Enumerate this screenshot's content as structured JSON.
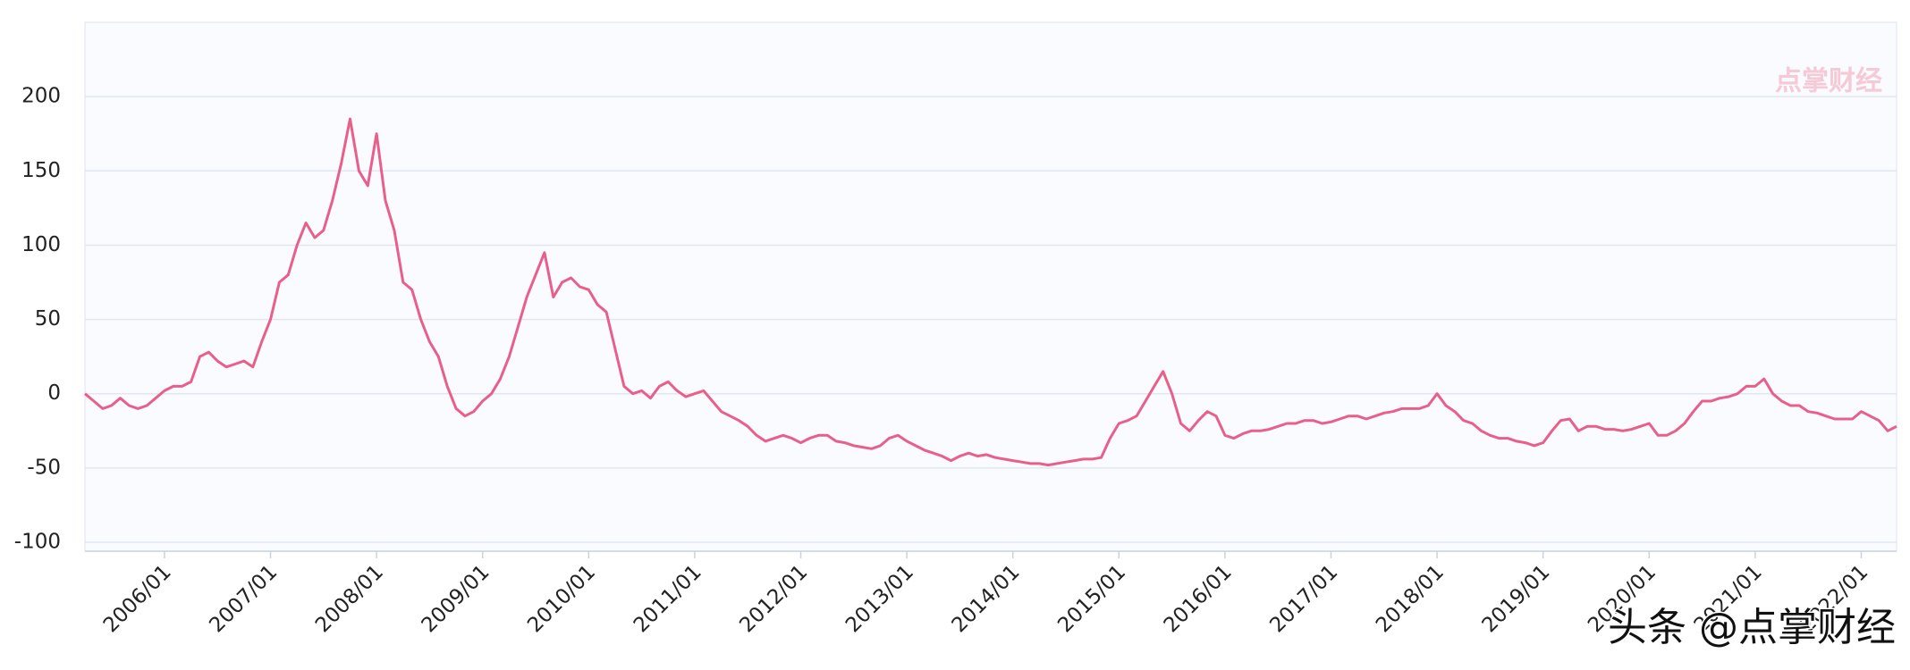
{
  "chart_data": {
    "type": "line",
    "x": [
      "2005/04",
      "2005/05",
      "2005/06",
      "2005/07",
      "2005/08",
      "2005/09",
      "2005/10",
      "2005/11",
      "2005/12",
      "2006/01",
      "2006/02",
      "2006/03",
      "2006/04",
      "2006/05",
      "2006/06",
      "2006/07",
      "2006/08",
      "2006/09",
      "2006/10",
      "2006/11",
      "2006/12",
      "2007/01",
      "2007/02",
      "2007/03",
      "2007/04",
      "2007/05",
      "2007/06",
      "2007/07",
      "2007/08",
      "2007/09",
      "2007/10",
      "2007/11",
      "2007/12",
      "2008/01",
      "2008/02",
      "2008/03",
      "2008/04",
      "2008/05",
      "2008/06",
      "2008/07",
      "2008/08",
      "2008/09",
      "2008/10",
      "2008/11",
      "2008/12",
      "2009/01",
      "2009/02",
      "2009/03",
      "2009/04",
      "2009/05",
      "2009/06",
      "2009/07",
      "2009/08",
      "2009/09",
      "2009/10",
      "2009/11",
      "2009/12",
      "2010/01",
      "2010/02",
      "2010/03",
      "2010/04",
      "2010/05",
      "2010/06",
      "2010/07",
      "2010/08",
      "2010/09",
      "2010/10",
      "2010/11",
      "2010/12",
      "2011/01",
      "2011/02",
      "2011/03",
      "2011/04",
      "2011/05",
      "2011/06",
      "2011/07",
      "2011/08",
      "2011/09",
      "2011/10",
      "2011/11",
      "2011/12",
      "2012/01",
      "2012/02",
      "2012/03",
      "2012/04",
      "2012/05",
      "2012/06",
      "2012/07",
      "2012/08",
      "2012/09",
      "2012/10",
      "2012/11",
      "2012/12",
      "2013/01",
      "2013/02",
      "2013/03",
      "2013/04",
      "2013/05",
      "2013/06",
      "2013/07",
      "2013/08",
      "2013/09",
      "2013/10",
      "2013/11",
      "2013/12",
      "2014/01",
      "2014/02",
      "2014/03",
      "2014/04",
      "2014/05",
      "2014/06",
      "2014/07",
      "2014/08",
      "2014/09",
      "2014/10",
      "2014/11",
      "2014/12",
      "2015/01",
      "2015/02",
      "2015/03",
      "2015/04",
      "2015/05",
      "2015/06",
      "2015/07",
      "2015/08",
      "2015/09",
      "2015/10",
      "2015/11",
      "2015/12",
      "2016/01",
      "2016/02",
      "2016/03",
      "2016/04",
      "2016/05",
      "2016/06",
      "2016/07",
      "2016/08",
      "2016/09",
      "2016/10",
      "2016/11",
      "2016/12",
      "2017/01",
      "2017/02",
      "2017/03",
      "2017/04",
      "2017/05",
      "2017/06",
      "2017/07",
      "2017/08",
      "2017/09",
      "2017/10",
      "2017/11",
      "2017/12",
      "2018/01",
      "2018/02",
      "2018/03",
      "2018/04",
      "2018/05",
      "2018/06",
      "2018/07",
      "2018/08",
      "2018/09",
      "2018/10",
      "2018/11",
      "2018/12",
      "2019/01",
      "2019/02",
      "2019/03",
      "2019/04",
      "2019/05",
      "2019/06",
      "2019/07",
      "2019/08",
      "2019/09",
      "2019/10",
      "2019/11",
      "2019/12",
      "2020/01",
      "2020/02",
      "2020/03",
      "2020/04",
      "2020/05",
      "2020/06",
      "2020/07",
      "2020/08",
      "2020/09",
      "2020/10",
      "2020/11",
      "2020/12",
      "2021/01",
      "2021/02",
      "2021/03",
      "2021/04",
      "2021/05",
      "2021/06",
      "2021/07",
      "2021/08",
      "2021/09",
      "2021/10",
      "2021/11",
      "2021/12",
      "2022/01",
      "2022/02",
      "2022/03",
      "2022/04",
      "2022/05"
    ],
    "values": [
      0,
      -5,
      -10,
      -8,
      -3,
      -8,
      -10,
      -8,
      -3,
      2,
      5,
      5,
      8,
      25,
      28,
      22,
      18,
      20,
      22,
      18,
      35,
      50,
      75,
      80,
      100,
      115,
      105,
      110,
      130,
      155,
      185,
      150,
      140,
      175,
      130,
      110,
      75,
      70,
      50,
      35,
      25,
      5,
      -10,
      -15,
      -12,
      -5,
      0,
      10,
      25,
      45,
      65,
      80,
      95,
      65,
      75,
      78,
      72,
      70,
      60,
      55,
      30,
      5,
      0,
      2,
      -3,
      5,
      8,
      2,
      -2,
      0,
      2,
      -5,
      -12,
      -15,
      -18,
      -22,
      -28,
      -32,
      -30,
      -28,
      -30,
      -33,
      -30,
      -28,
      -28,
      -32,
      -33,
      -35,
      -36,
      -37,
      -35,
      -30,
      -28,
      -32,
      -35,
      -38,
      -40,
      -42,
      -45,
      -42,
      -40,
      -42,
      -41,
      -43,
      -44,
      -45,
      -46,
      -47,
      -47,
      -48,
      -47,
      -46,
      -45,
      -44,
      -44,
      -43,
      -30,
      -20,
      -18,
      -15,
      -5,
      5,
      15,
      0,
      -20,
      -25,
      -18,
      -12,
      -15,
      -28,
      -30,
      -27,
      -25,
      -25,
      -24,
      -22,
      -20,
      -20,
      -18,
      -18,
      -20,
      -19,
      -17,
      -15,
      -15,
      -17,
      -15,
      -13,
      -12,
      -10,
      -10,
      -10,
      -8,
      0,
      -8,
      -12,
      -18,
      -20,
      -25,
      -28,
      -30,
      -30,
      -32,
      -33,
      -35,
      -33,
      -25,
      -18,
      -17,
      -25,
      -22,
      -22,
      -24,
      -24,
      -25,
      -24,
      -22,
      -20,
      -28,
      -28,
      -25,
      -20,
      -12,
      -5,
      -5,
      -3,
      -2,
      0,
      5,
      5,
      10,
      0,
      -5,
      -8,
      -8,
      -12,
      -13,
      -15,
      -17,
      -17,
      -17,
      -12,
      -15,
      -18,
      -25,
      -22
    ],
    "color": "#e8608a",
    "xlim": [
      "2005/04",
      "2022/05"
    ],
    "xticks": [
      "2006/01",
      "2007/01",
      "2008/01",
      "2009/01",
      "2010/01",
      "2011/01",
      "2012/01",
      "2013/01",
      "2014/01",
      "2015/01",
      "2016/01",
      "2017/01",
      "2018/01",
      "2019/01",
      "2020/01",
      "2021/01",
      "2022/01"
    ],
    "ylim": [
      -106,
      250
    ],
    "yticks": [
      -100,
      -50,
      0,
      50,
      100,
      150,
      200
    ],
    "grid": true
  },
  "watermarks": {
    "logo": "点掌财经",
    "credit": "头条 @点掌财经"
  }
}
